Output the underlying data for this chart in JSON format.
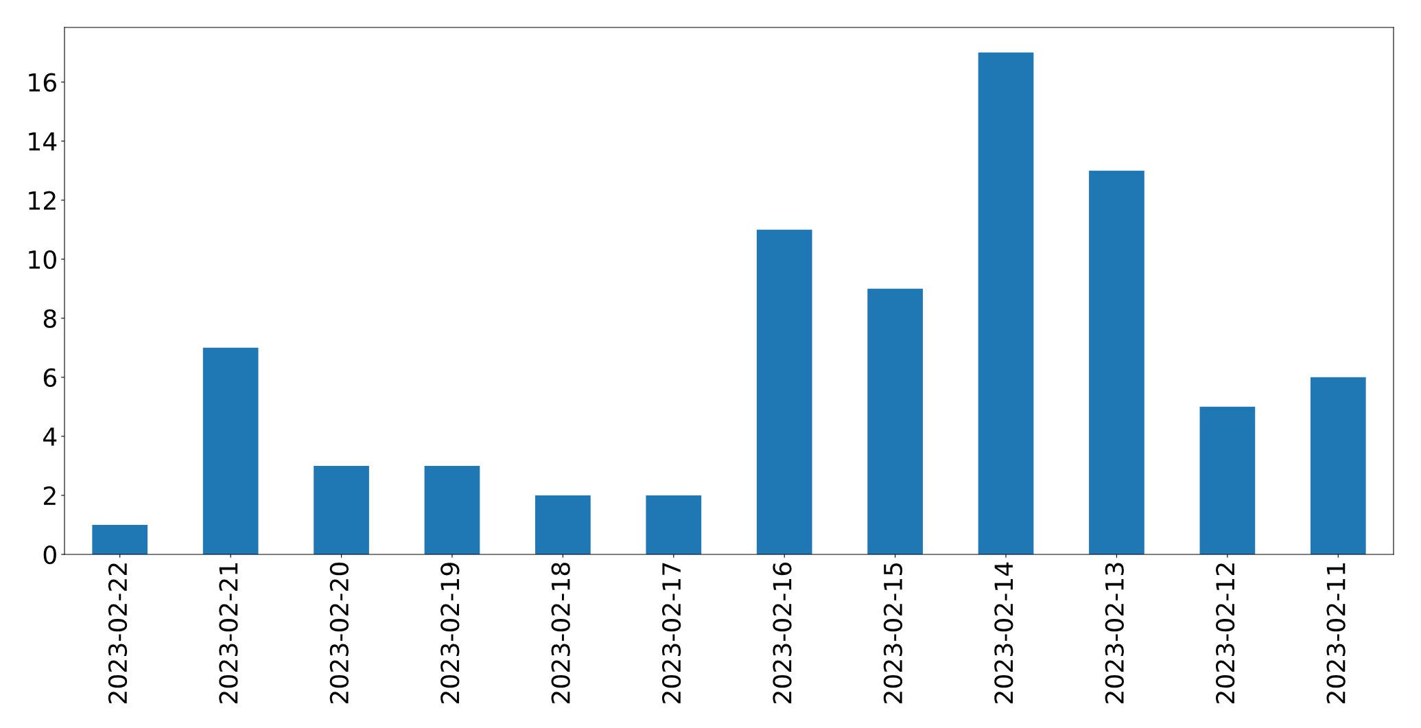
{
  "chart_data": {
    "type": "bar",
    "categories": [
      "2023-02-22",
      "2023-02-21",
      "2023-02-20",
      "2023-02-19",
      "2023-02-18",
      "2023-02-17",
      "2023-02-16",
      "2023-02-15",
      "2023-02-14",
      "2023-02-13",
      "2023-02-12",
      "2023-02-11"
    ],
    "values": [
      1,
      7,
      3,
      3,
      2,
      2,
      11,
      9,
      17,
      13,
      5,
      6
    ],
    "color": "#1f77b4",
    "ylim": [
      0,
      17.85
    ],
    "yticks": [
      0,
      2,
      4,
      6,
      8,
      10,
      12,
      14,
      16
    ],
    "grid": false,
    "legend": false
  }
}
